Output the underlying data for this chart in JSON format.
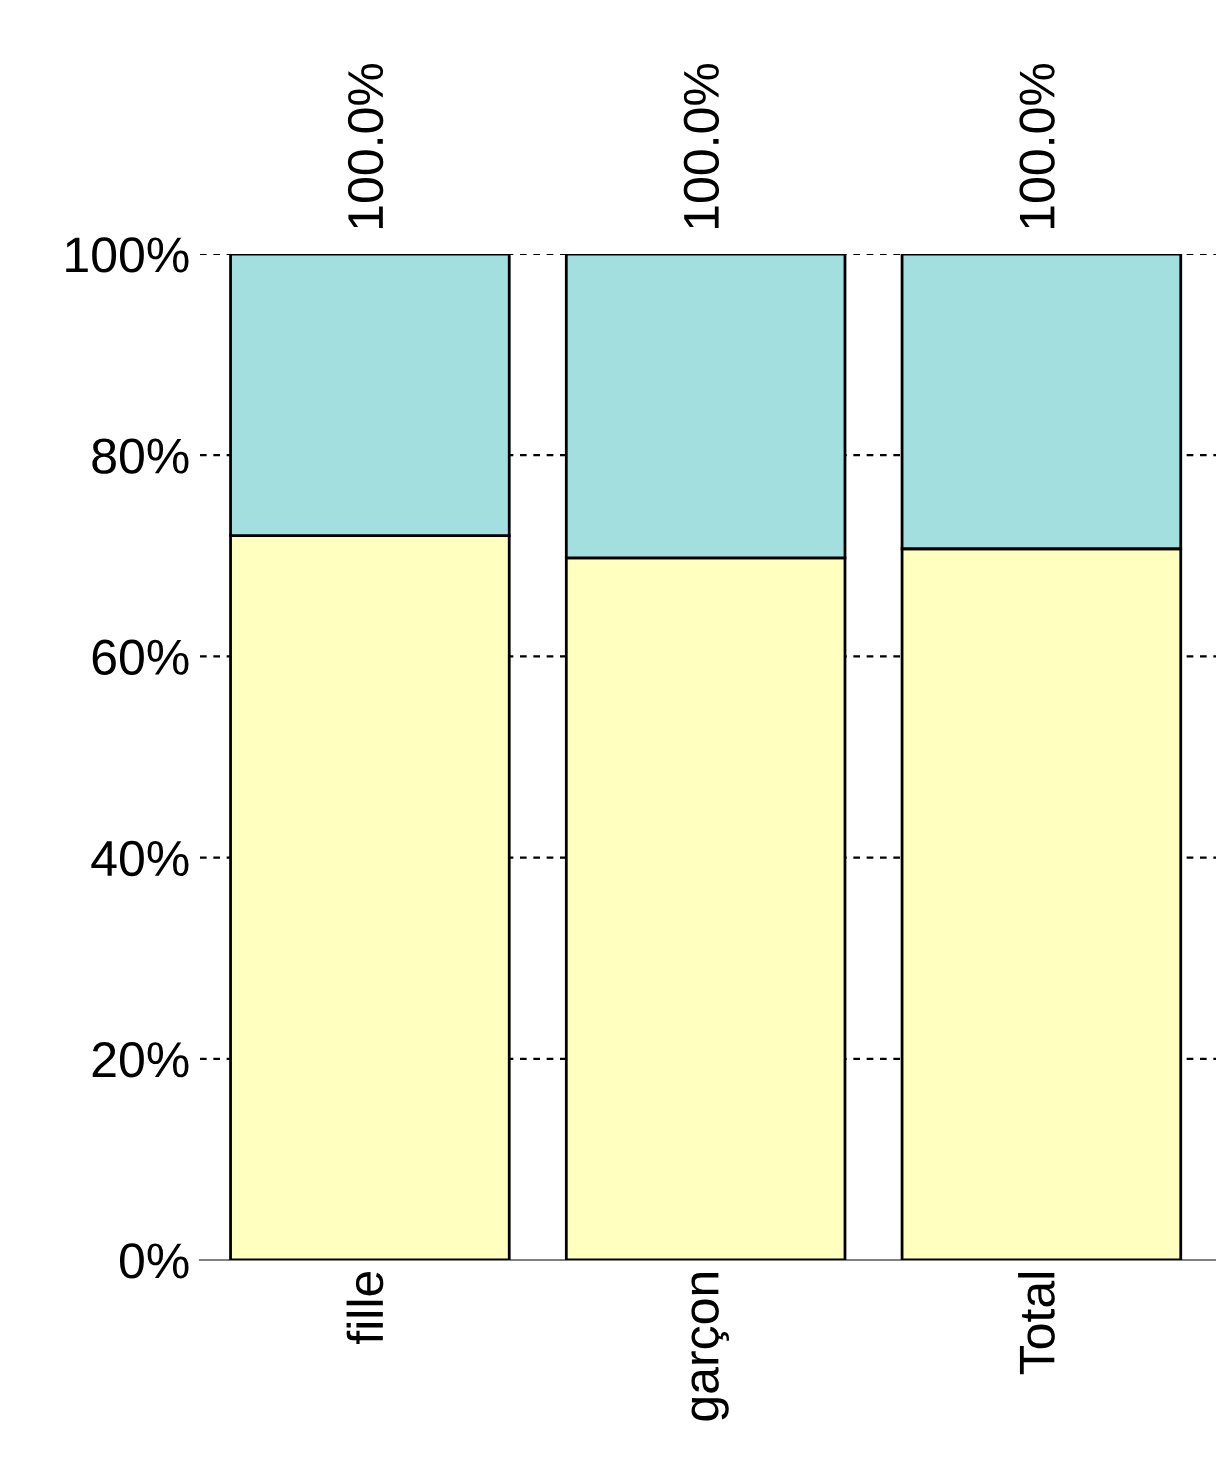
{
  "chart_data": {
    "type": "bar",
    "stacked": true,
    "categories": [
      "fille",
      "garçon",
      "Total"
    ],
    "series": [
      {
        "color": "#ffffc0",
        "values": [
          72.0,
          69.8,
          70.7
        ]
      },
      {
        "color": "#a3dfdf",
        "values": [
          28.0,
          30.2,
          29.3
        ]
      }
    ],
    "totals": [
      "100.0%",
      "100.0%",
      "100.0%"
    ],
    "ylim": [
      0,
      100
    ],
    "yticks": [
      {
        "value": 0,
        "label": "0%"
      },
      {
        "value": 20,
        "label": "20%"
      },
      {
        "value": 40,
        "label": "40%"
      },
      {
        "value": 60,
        "label": "60%"
      },
      {
        "value": 80,
        "label": "80%"
      },
      {
        "value": 100,
        "label": "100%"
      }
    ],
    "grid": "y",
    "legend": false
  }
}
